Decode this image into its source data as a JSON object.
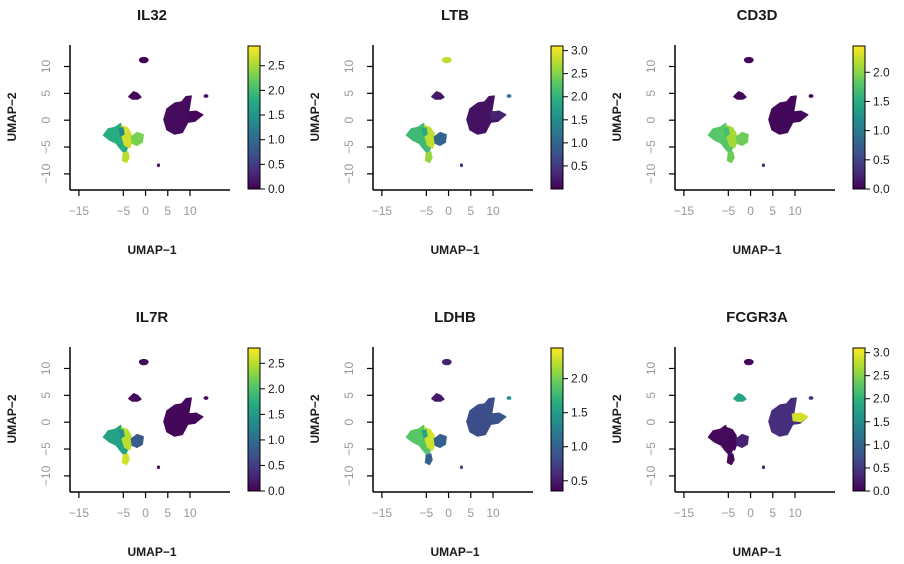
{
  "chart_data": [
    {
      "type": "scatter",
      "title": "IL32",
      "xlabel": "UMAP−1",
      "ylabel": "UMAP−2",
      "xticks": [
        "−15",
        "−5",
        "0",
        "5",
        "10"
      ],
      "yticks": [
        "−10",
        "−5",
        "0",
        "5",
        "10"
      ],
      "xlim": [
        -17,
        19
      ],
      "ylim": [
        -13,
        14
      ],
      "colorbar_ticks": [
        "0.0",
        "0.5",
        "1.0",
        "1.5",
        "2.0",
        "2.5"
      ],
      "colorbar_range": [
        0,
        2.9
      ],
      "clusters": [
        {
          "id": "nk",
          "value": 0.0
        },
        {
          "id": "b",
          "value": 0.05
        },
        {
          "id": "t_main",
          "value": 1.8
        },
        {
          "id": "t_bright",
          "value": 2.7
        },
        {
          "id": "cd8",
          "value": 2.3
        },
        {
          "id": "mono_cd14",
          "value": 0.08
        },
        {
          "id": "mono_fcgr3a",
          "value": 0.05
        },
        {
          "id": "dc",
          "value": 0.1
        },
        {
          "id": "platelet",
          "value": 0.1
        },
        {
          "id": "tail",
          "value": 2.6
        },
        {
          "id": "treg",
          "value": 1.3
        }
      ]
    },
    {
      "type": "scatter",
      "title": "LTB",
      "xlabel": "UMAP−1",
      "ylabel": "UMAP−2",
      "xticks": [
        "−15",
        "−5",
        "0",
        "5",
        "10"
      ],
      "yticks": [
        "−10",
        "−5",
        "0",
        "5",
        "10"
      ],
      "xlim": [
        -17,
        19
      ],
      "ylim": [
        -13,
        14
      ],
      "colorbar_ticks": [
        "0.5",
        "1.0",
        "1.5",
        "2.0",
        "2.5",
        "3.0"
      ],
      "colorbar_range": [
        0,
        3.1
      ],
      "clusters": [
        {
          "id": "nk",
          "value": 2.8
        },
        {
          "id": "b",
          "value": 0.2
        },
        {
          "id": "t_main",
          "value": 2.1
        },
        {
          "id": "t_bright",
          "value": 2.8
        },
        {
          "id": "cd8",
          "value": 1.0
        },
        {
          "id": "mono_cd14",
          "value": 0.15
        },
        {
          "id": "mono_fcgr3a",
          "value": 0.3
        },
        {
          "id": "dc",
          "value": 1.2
        },
        {
          "id": "platelet",
          "value": 0.4
        },
        {
          "id": "tail",
          "value": 2.6
        },
        {
          "id": "treg",
          "value": 1.9
        }
      ]
    },
    {
      "type": "scatter",
      "title": "CD3D",
      "xlabel": "UMAP−1",
      "ylabel": "UMAP−2",
      "xticks": [
        "−15",
        "−5",
        "0",
        "5",
        "10"
      ],
      "yticks": [
        "−10",
        "−5",
        "0",
        "5",
        "10"
      ],
      "xlim": [
        -17,
        19
      ],
      "ylim": [
        -13,
        14
      ],
      "colorbar_ticks": [
        "0.0",
        "0.5",
        "1.0",
        "1.5",
        "2.0"
      ],
      "colorbar_range": [
        0,
        2.45
      ],
      "clusters": [
        {
          "id": "nk",
          "value": 0.05
        },
        {
          "id": "b",
          "value": 0.05
        },
        {
          "id": "t_main",
          "value": 1.8
        },
        {
          "id": "t_bright",
          "value": 2.1
        },
        {
          "id": "cd8",
          "value": 1.9
        },
        {
          "id": "mono_cd14",
          "value": 0.05
        },
        {
          "id": "mono_fcgr3a",
          "value": 0.05
        },
        {
          "id": "dc",
          "value": 0.05
        },
        {
          "id": "platelet",
          "value": 0.3
        },
        {
          "id": "tail",
          "value": 1.9
        },
        {
          "id": "treg",
          "value": 1.7
        }
      ]
    },
    {
      "type": "scatter",
      "title": "IL7R",
      "xlabel": "UMAP−1",
      "ylabel": "UMAP−2",
      "xticks": [
        "−15",
        "−5",
        "0",
        "5",
        "10"
      ],
      "yticks": [
        "−10",
        "−5",
        "0",
        "5",
        "10"
      ],
      "xlim": [
        -17,
        19
      ],
      "ylim": [
        -13,
        14
      ],
      "colorbar_ticks": [
        "0.0",
        "0.5",
        "1.0",
        "1.5",
        "2.0",
        "2.5"
      ],
      "colorbar_range": [
        0,
        2.8
      ],
      "clusters": [
        {
          "id": "nk",
          "value": 0.05
        },
        {
          "id": "b",
          "value": 0.05
        },
        {
          "id": "t_main",
          "value": 1.6
        },
        {
          "id": "t_bright",
          "value": 2.5
        },
        {
          "id": "cd8",
          "value": 0.8
        },
        {
          "id": "mono_cd14",
          "value": 0.05
        },
        {
          "id": "mono_fcgr3a",
          "value": 0.05
        },
        {
          "id": "dc",
          "value": 0.05
        },
        {
          "id": "platelet",
          "value": 0.1
        },
        {
          "id": "tail",
          "value": 2.6
        },
        {
          "id": "treg",
          "value": 1.4
        }
      ]
    },
    {
      "type": "scatter",
      "title": "LDHB",
      "xlabel": "UMAP−1",
      "ylabel": "UMAP−2",
      "xticks": [
        "−15",
        "−5",
        "0",
        "5",
        "10"
      ],
      "yticks": [
        "−10",
        "−5",
        "0",
        "5",
        "10"
      ],
      "xlim": [
        -17,
        19
      ],
      "ylim": [
        -13,
        14
      ],
      "colorbar_ticks": [
        "0.5",
        "1.0",
        "1.5",
        "2.0"
      ],
      "colorbar_range": [
        0.35,
        2.45
      ],
      "clusters": [
        {
          "id": "nk",
          "value": 0.55
        },
        {
          "id": "b",
          "value": 0.5
        },
        {
          "id": "t_main",
          "value": 1.9
        },
        {
          "id": "t_bright",
          "value": 2.3
        },
        {
          "id": "cd8",
          "value": 1.0
        },
        {
          "id": "mono_cd14",
          "value": 0.85
        },
        {
          "id": "mono_fcgr3a",
          "value": 0.9
        },
        {
          "id": "dc",
          "value": 1.4
        },
        {
          "id": "platelet",
          "value": 0.8
        },
        {
          "id": "tail",
          "value": 1.0
        },
        {
          "id": "treg",
          "value": 1.6
        }
      ]
    },
    {
      "type": "scatter",
      "title": "FCGR3A",
      "xlabel": "UMAP−1",
      "ylabel": "UMAP−2",
      "xticks": [
        "−15",
        "−5",
        "0",
        "5",
        "10"
      ],
      "yticks": [
        "−10",
        "−5",
        "0",
        "5",
        "10"
      ],
      "xlim": [
        -17,
        19
      ],
      "ylim": [
        -13,
        14
      ],
      "colorbar_ticks": [
        "0.0",
        "0.5",
        "1.0",
        "1.5",
        "2.0",
        "2.5",
        "3.0"
      ],
      "colorbar_range": [
        0,
        3.1
      ],
      "clusters": [
        {
          "id": "nk",
          "value": 0.05
        },
        {
          "id": "b",
          "value": 1.8
        },
        {
          "id": "t_main",
          "value": 0.08
        },
        {
          "id": "t_bright",
          "value": 0.05
        },
        {
          "id": "cd8",
          "value": 0.3
        },
        {
          "id": "mono_cd14",
          "value": 0.4
        },
        {
          "id": "mono_fcgr3a",
          "value": 2.9
        },
        {
          "id": "dc",
          "value": 0.5
        },
        {
          "id": "platelet",
          "value": 0.3
        },
        {
          "id": "tail",
          "value": 0.05
        },
        {
          "id": "treg",
          "value": 0.1
        }
      ]
    }
  ]
}
